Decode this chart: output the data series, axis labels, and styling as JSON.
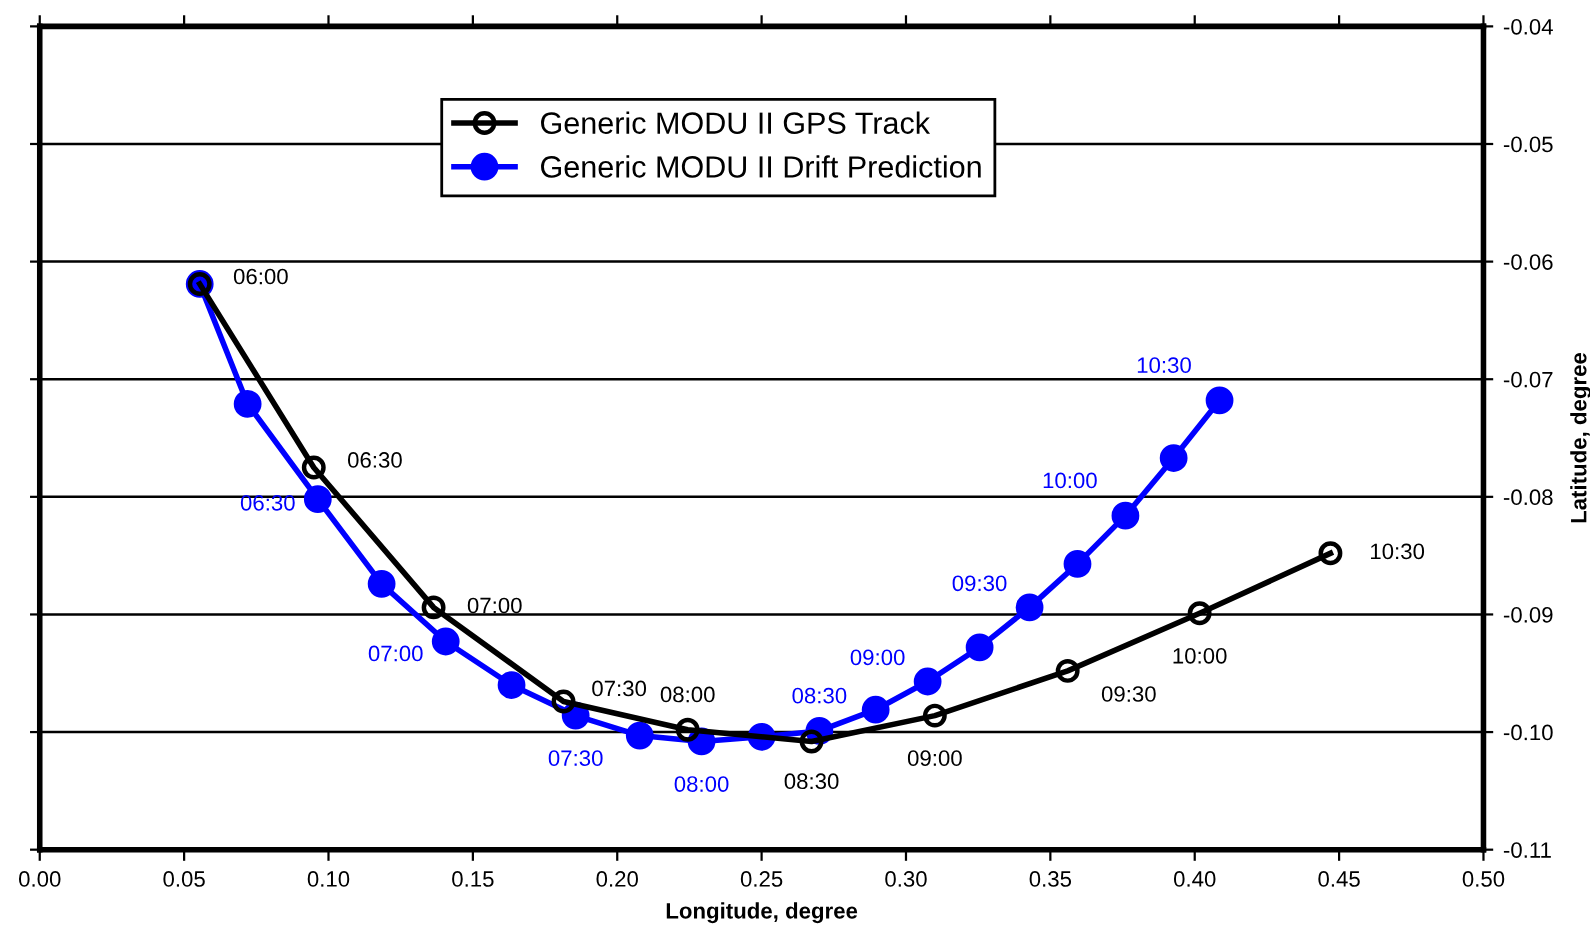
{
  "chart_data": {
    "type": "line",
    "xlabel": "Longitude, degree",
    "ylabel": "Latitude, degree",
    "xlim": [
      0,
      0.5
    ],
    "xticks": [
      {
        "value": 0,
        "label": "0.00"
      },
      {
        "value": 0.05,
        "label": "0.05"
      },
      {
        "value": 0.1,
        "label": "0.10"
      },
      {
        "value": 0.15,
        "label": "0.15"
      },
      {
        "value": 0.2,
        "label": "0.20"
      },
      {
        "value": 0.25,
        "label": "0.25"
      },
      {
        "value": 0.3,
        "label": "0.30"
      },
      {
        "value": 0.35,
        "label": "0.35"
      },
      {
        "value": 0.4,
        "label": "0.40"
      },
      {
        "value": 0.45,
        "label": "0.45"
      },
      {
        "value": 0.5,
        "label": "0.50"
      }
    ],
    "ylim": [
      -0.11,
      -0.04
    ],
    "yticks": [
      -0.11,
      {
        "value": -0.1,
        "label": "-0.10"
      },
      -0.09,
      -0.08,
      -0.07,
      -0.06,
      -0.05,
      -0.04
    ],
    "grid": "y",
    "legend": "top",
    "marker": "circle",
    "line_style": "solid",
    "series": [
      {
        "name": "Generic MODU II GPS Track",
        "color": "#000000",
        "x": [
          0.0554,
          0.0949,
          0.1364,
          0.1814,
          0.2244,
          0.2673,
          0.31,
          0.356,
          0.4017,
          0.447
        ],
        "values": [
          -0.0619,
          -0.0775,
          -0.0894,
          -0.0974,
          -0.0998,
          -0.1008,
          -0.0986,
          -0.0948,
          -0.0899,
          -0.0848
        ]
      },
      {
        "name": "Generic MODU II Drift Prediction",
        "color": "#0000ff",
        "x": [
          0.0554,
          0.072,
          0.0963,
          0.1184,
          0.1406,
          0.1634,
          0.1856,
          0.2078,
          0.2292,
          0.25,
          0.27,
          0.2895,
          0.3075,
          0.3255,
          0.3428,
          0.3594,
          0.376,
          0.3927,
          0.4086
        ],
        "values": [
          -0.0619,
          -0.0721,
          -0.0802,
          -0.0874,
          -0.0923,
          -0.096,
          -0.0986,
          -0.1003,
          -0.1008,
          -0.1004,
          -0.0999,
          -0.0981,
          -0.0957,
          -0.0928,
          -0.0894,
          -0.0857,
          -0.0816,
          -0.0767,
          -0.0718
        ]
      }
    ],
    "annotations": [
      {
        "text": "06:00",
        "x": 0.0554,
        "y": -0.0619
      },
      {
        "text": "06:30",
        "x": 0.0949,
        "y": -0.0775
      },
      {
        "text": "07:00",
        "x": 0.1364,
        "y": -0.0894
      },
      {
        "text": "07:30",
        "x": 0.1814,
        "y": -0.0974
      },
      {
        "text": "08:00",
        "x": 0.2244,
        "y": -0.0998
      },
      {
        "text": "08:30",
        "x": 0.2673,
        "y": -0.1008
      },
      {
        "text": "09:00",
        "x": 0.31,
        "y": -0.0986
      },
      {
        "text": "09:30",
        "x": 0.356,
        "y": -0.0948
      },
      {
        "text": "10:00",
        "x": 0.4017,
        "y": -0.0899
      },
      {
        "text": "10:30",
        "x": 0.447,
        "y": -0.0848
      },
      {
        "text": "06:30",
        "x": 0.0963,
        "y": -0.0802
      },
      {
        "text": "07:00",
        "x": 0.1406,
        "y": -0.0923
      },
      {
        "text": "07:30",
        "x": 0.1856,
        "y": -0.0986
      },
      {
        "text": "08:00",
        "x": 0.2292,
        "y": -0.1008
      },
      {
        "text": "08:30",
        "x": 0.27,
        "y": -0.0999
      },
      {
        "text": "09:00",
        "x": 0.3075,
        "y": -0.0957
      },
      {
        "text": "09:30",
        "x": 0.3428,
        "y": -0.0894
      },
      {
        "text": "10:00",
        "x": 0.376,
        "y": -0.0816
      },
      {
        "text": "10:30",
        "x": 0.4086,
        "y": -0.0718
      }
    ]
  }
}
